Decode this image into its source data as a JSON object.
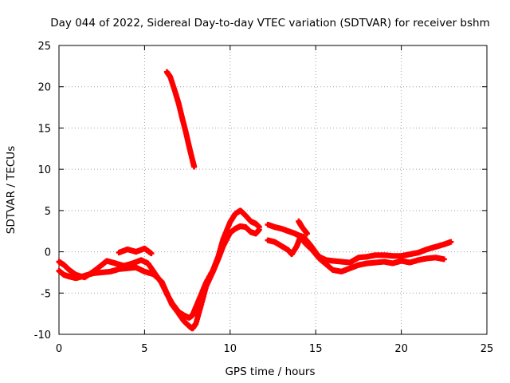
{
  "chart_data": {
    "type": "scatter",
    "title": "Day 044 of 2022, Sidereal Day-to-day VTEC variation (SDTVAR) for receiver bshm",
    "xlabel": "GPS time / hours",
    "ylabel": "SDTVAR / TECUs",
    "xlim": [
      0,
      25
    ],
    "ylim": [
      -10,
      25
    ],
    "xticks": [
      0,
      5,
      10,
      15,
      20,
      25
    ],
    "yticks": [
      -10,
      -5,
      0,
      5,
      10,
      15,
      20,
      25
    ],
    "grid": true,
    "marker_color": "#ff0000",
    "series": [
      {
        "name": "track-1",
        "x": [
          0.0,
          0.3,
          0.6,
          1.0,
          1.5,
          2.0,
          2.5,
          3.0,
          3.5,
          4.0,
          4.5,
          5.0,
          5.5,
          6.0,
          6.3,
          6.6,
          7.0,
          7.3,
          7.6,
          7.8,
          8.0,
          8.3,
          8.6,
          9.0,
          9.3,
          9.6,
          10.0,
          10.3,
          10.6,
          10.9,
          11.2,
          11.5,
          11.7
        ],
        "y": [
          -2.3,
          -2.8,
          -3.0,
          -3.2,
          -2.9,
          -2.6,
          -2.5,
          -2.4,
          -2.1,
          -2.0,
          -1.9,
          -2.4,
          -2.7,
          -3.6,
          -5.0,
          -6.4,
          -7.5,
          -8.4,
          -9.0,
          -9.3,
          -8.7,
          -6.5,
          -4.2,
          -2.4,
          -0.9,
          0.7,
          2.3,
          2.8,
          3.1,
          3.0,
          2.4,
          2.2,
          2.7
        ]
      },
      {
        "name": "track-2",
        "x": [
          0.0,
          0.3,
          0.6,
          1.0,
          1.5,
          2.0,
          2.5,
          2.8,
          3.3,
          3.8,
          4.3,
          4.8,
          5.2,
          5.6,
          6.0,
          6.3,
          6.6,
          7.0,
          7.3,
          7.6,
          7.8,
          8.0,
          8.3,
          8.6,
          9.0,
          9.3,
          9.6,
          10.0,
          10.3,
          10.6,
          10.9,
          11.2,
          11.5,
          11.7
        ],
        "y": [
          -1.2,
          -1.6,
          -2.2,
          -2.8,
          -3.1,
          -2.4,
          -1.6,
          -1.1,
          -1.4,
          -1.7,
          -1.4,
          -1.0,
          -1.4,
          -2.6,
          -3.8,
          -5.1,
          -6.2,
          -7.3,
          -7.7,
          -8.0,
          -7.7,
          -6.7,
          -5.2,
          -3.7,
          -2.2,
          -0.6,
          1.6,
          3.6,
          4.6,
          5.0,
          4.4,
          3.7,
          3.4,
          3.0
        ]
      },
      {
        "name": "track-3",
        "x": [
          3.5,
          4.0,
          4.5,
          5.0,
          5.4
        ],
        "y": [
          -0.1,
          0.3,
          0.0,
          0.4,
          -0.2
        ]
      },
      {
        "name": "track-4",
        "x": [
          6.3,
          6.5,
          6.8,
          7.0,
          7.2,
          7.4,
          7.6,
          7.8,
          7.9
        ],
        "y": [
          21.8,
          21.2,
          19.3,
          17.9,
          16.2,
          14.6,
          12.8,
          11.1,
          10.3
        ]
      },
      {
        "name": "track-5",
        "x": [
          12.2,
          12.6,
          13.0,
          13.4,
          13.8,
          14.0,
          14.3,
          14.7,
          15.2,
          15.6,
          16.0,
          16.5,
          17.0,
          17.5,
          18.0,
          18.5,
          19.0,
          19.5,
          20.0,
          20.5,
          21.0,
          21.5,
          22.0,
          22.5,
          22.9
        ],
        "y": [
          3.3,
          3.0,
          2.8,
          2.5,
          2.2,
          2.0,
          1.8,
          0.8,
          -0.6,
          -1.0,
          -1.1,
          -1.2,
          -1.3,
          -0.7,
          -0.6,
          -0.4,
          -0.4,
          -0.5,
          -0.5,
          -0.3,
          -0.1,
          0.3,
          0.6,
          0.9,
          1.2
        ]
      },
      {
        "name": "track-6",
        "x": [
          12.2,
          12.6,
          13.0,
          13.4,
          13.6,
          13.9,
          14.1,
          14.4,
          14.8,
          15.2,
          15.6,
          16.0,
          16.5,
          17.0,
          17.5,
          18.0,
          18.5,
          19.0,
          19.5,
          20.0,
          20.5,
          21.0,
          21.5,
          22.0,
          22.5
        ],
        "y": [
          1.4,
          1.2,
          0.7,
          0.2,
          -0.3,
          0.7,
          1.8,
          1.0,
          0.2,
          -0.8,
          -1.5,
          -2.2,
          -2.4,
          -2.0,
          -1.6,
          -1.4,
          -1.3,
          -1.2,
          -1.4,
          -1.1,
          -1.3,
          -1.0,
          -0.8,
          -0.7,
          -0.9
        ]
      },
      {
        "name": "track-7",
        "x": [
          14.0,
          14.2,
          14.5
        ],
        "y": [
          3.7,
          3.0,
          2.2
        ]
      }
    ]
  }
}
